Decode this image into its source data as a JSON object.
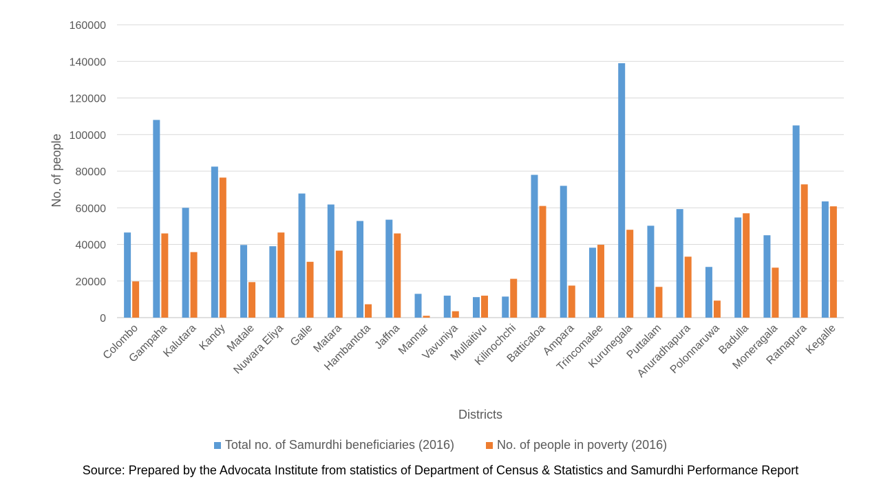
{
  "chart_data": {
    "type": "bar",
    "title": "",
    "xlabel": "Districts",
    "ylabel": "No. of people",
    "ylim": [
      0,
      160000
    ],
    "yticks": [
      "0",
      "20000",
      "40000",
      "60000",
      "80000",
      "100000",
      "120000",
      "140000",
      "160000"
    ],
    "grid": true,
    "legend_position": "bottom",
    "categories": [
      "Colombo",
      "Gampaha",
      "Kalutara",
      "Kandy",
      "Matale",
      "Nuwara Eliya",
      "Galle",
      "Matara",
      "Hambantota",
      "Jaffna",
      "Mannar",
      "Vavuniya",
      "Mullaitivu",
      "Kilinochchi",
      "Batticaloa",
      "Ampara",
      "Trincomalee",
      "Kurunegala",
      "Puttalam",
      "Anuradhapura",
      "Polonnaruwa",
      "Badulla",
      "Moneragala",
      "Ratnapura",
      "Kegalle"
    ],
    "series": [
      {
        "name": "Total no. of Samurdhi beneficiaries (2016)",
        "color": "#5B9BD5",
        "values": [
          46500,
          108000,
          60000,
          82500,
          39700,
          39000,
          67800,
          61800,
          52800,
          53500,
          13000,
          12000,
          11200,
          11500,
          78000,
          72000,
          38200,
          139000,
          50200,
          59300,
          27700,
          54700,
          45000,
          105000,
          63500
        ]
      },
      {
        "name": "No. of people in poverty (2016)",
        "color": "#ED7D31",
        "values": [
          19800,
          46000,
          35800,
          76500,
          19400,
          46500,
          30500,
          36600,
          7300,
          46000,
          1000,
          3500,
          12000,
          21200,
          61000,
          17500,
          39800,
          48000,
          16800,
          33300,
          9300,
          57000,
          27300,
          72800,
          60800
        ]
      }
    ]
  },
  "source": "Source: Prepared by the Advocata Institute from statistics of Department of Census & Statistics and Samurdhi Performance Report"
}
